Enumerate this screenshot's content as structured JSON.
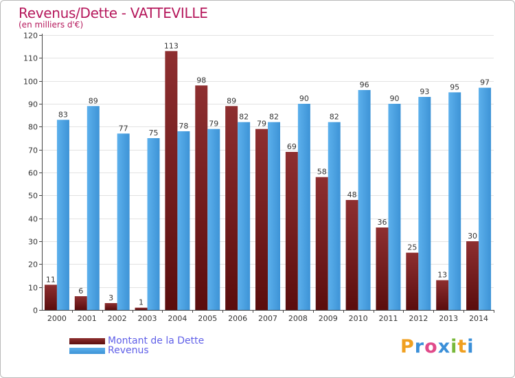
{
  "chart_data": {
    "type": "bar",
    "title": "Revenus/Dette - VATTEVILLE",
    "subtitle": "(en milliers d'€)",
    "xlabel": "",
    "ylabel": "",
    "ylim": [
      0,
      120
    ],
    "yticks": [
      0,
      10,
      20,
      30,
      40,
      50,
      60,
      70,
      80,
      90,
      100,
      110,
      120
    ],
    "categories": [
      "2000",
      "2001",
      "2002",
      "2003",
      "2004",
      "2005",
      "2006",
      "2007",
      "2008",
      "2009",
      "2010",
      "2011",
      "2012",
      "2013",
      "2014"
    ],
    "series": [
      {
        "name": "Montant de la Dette",
        "color": "#7a1c1c",
        "values": [
          11,
          6,
          3,
          1,
          113,
          98,
          89,
          79,
          69,
          58,
          48,
          36,
          25,
          13,
          30
        ]
      },
      {
        "name": "Revenus",
        "color": "#4aa3e3",
        "values": [
          83,
          89,
          77,
          75,
          78,
          79,
          82,
          82,
          90,
          82,
          96,
          90,
          93,
          95,
          97
        ]
      }
    ],
    "grid": true,
    "legend": "bottom-left"
  },
  "brand": {
    "letters": [
      "P",
      "r",
      "o",
      "x",
      "i",
      "t",
      "i"
    ],
    "colors": [
      "#f0a020",
      "#3a8fd8",
      "#e04a8a",
      "#3a8fd8",
      "#78b83a",
      "#f0a020",
      "#3a8fd8"
    ]
  }
}
